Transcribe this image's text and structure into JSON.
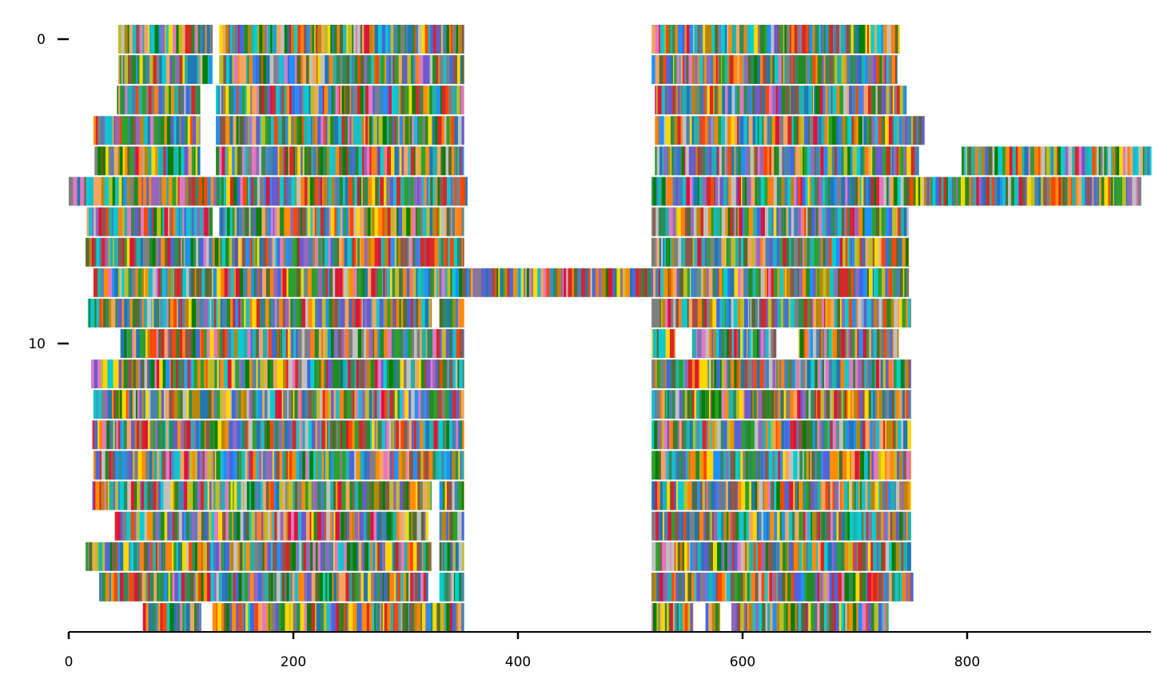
{
  "chart_data": {
    "type": "heatmap",
    "title": "",
    "xlabel": "",
    "ylabel": "",
    "xlim": [
      0,
      965
    ],
    "ylim": [
      19.5,
      -0.5
    ],
    "y_inverted": true,
    "grid": false,
    "legend": "none",
    "x_ticks": [
      0,
      200,
      400,
      600,
      800
    ],
    "x_tick_labels": [
      "0",
      "200",
      "400",
      "600",
      "800"
    ],
    "y_ticks": [
      0,
      10
    ],
    "y_tick_labels": [
      "0",
      "10"
    ],
    "rows": [
      {
        "row": 0,
        "spans": [
          [
            44,
            128
          ],
          [
            134,
            352
          ],
          [
            519,
            740
          ]
        ]
      },
      {
        "row": 1,
        "spans": [
          [
            44,
            128
          ],
          [
            134,
            352
          ],
          [
            519,
            738
          ]
        ]
      },
      {
        "row": 2,
        "spans": [
          [
            43,
            117
          ],
          [
            131,
            352
          ],
          [
            522,
            746
          ]
        ]
      },
      {
        "row": 3,
        "spans": [
          [
            22,
            117
          ],
          [
            131,
            352
          ],
          [
            522,
            762
          ]
        ]
      },
      {
        "row": 4,
        "spans": [
          [
            23,
            117
          ],
          [
            131,
            352
          ],
          [
            522,
            757
          ],
          [
            795,
            964
          ]
        ]
      },
      {
        "row": 5,
        "spans": [
          [
            0,
            355
          ],
          [
            519,
            955
          ]
        ]
      },
      {
        "row": 6,
        "spans": [
          [
            16,
            128
          ],
          [
            134,
            352
          ],
          [
            519,
            748
          ]
        ]
      },
      {
        "row": 7,
        "spans": [
          [
            15,
            352
          ],
          [
            519,
            748
          ]
        ]
      },
      {
        "row": 8,
        "spans": [
          [
            22,
            748
          ]
        ]
      },
      {
        "row": 9,
        "spans": [
          [
            17,
            323
          ],
          [
            330,
            352
          ],
          [
            519,
            750
          ]
        ]
      },
      {
        "row": 10,
        "spans": [
          [
            46,
            352
          ],
          [
            519,
            540
          ],
          [
            555,
            630
          ],
          [
            650,
            739
          ]
        ]
      },
      {
        "row": 11,
        "spans": [
          [
            20,
            352
          ],
          [
            519,
            750
          ]
        ]
      },
      {
        "row": 12,
        "spans": [
          [
            22,
            352
          ],
          [
            519,
            750
          ]
        ]
      },
      {
        "row": 13,
        "spans": [
          [
            21,
            352
          ],
          [
            519,
            750
          ]
        ]
      },
      {
        "row": 14,
        "spans": [
          [
            22,
            352
          ],
          [
            519,
            750
          ]
        ]
      },
      {
        "row": 15,
        "spans": [
          [
            21,
            323
          ],
          [
            330,
            352
          ],
          [
            519,
            750
          ]
        ]
      },
      {
        "row": 16,
        "spans": [
          [
            41,
            320
          ],
          [
            330,
            352
          ],
          [
            519,
            750
          ]
        ]
      },
      {
        "row": 17,
        "spans": [
          [
            15,
            323
          ],
          [
            330,
            352
          ],
          [
            519,
            750
          ]
        ]
      },
      {
        "row": 18,
        "spans": [
          [
            27,
            320
          ],
          [
            330,
            352
          ],
          [
            519,
            752
          ]
        ]
      },
      {
        "row": 19,
        "spans": [
          [
            66,
            118
          ],
          [
            128,
            352
          ],
          [
            519,
            556
          ],
          [
            567,
            580
          ],
          [
            590,
            730
          ]
        ]
      }
    ],
    "segment_colors": [
      "#1f77b4",
      "#2ca02c",
      "#d62728",
      "#ff7f0e",
      "#9467bd",
      "#8c564b",
      "#e377c2",
      "#7f7f7f",
      "#bcbd22",
      "#17becf",
      "#228b22",
      "#1e90ff",
      "#ffd700",
      "#00ced1",
      "#dc143c",
      "#ff8c00",
      "#4169e1",
      "#2e8b57",
      "#b8860b",
      "#556b2f",
      "#6a5acd",
      "#20b2aa",
      "#f4a460",
      "#008000",
      "#ff4500",
      "#4682b4",
      "#c0c0c0"
    ]
  }
}
